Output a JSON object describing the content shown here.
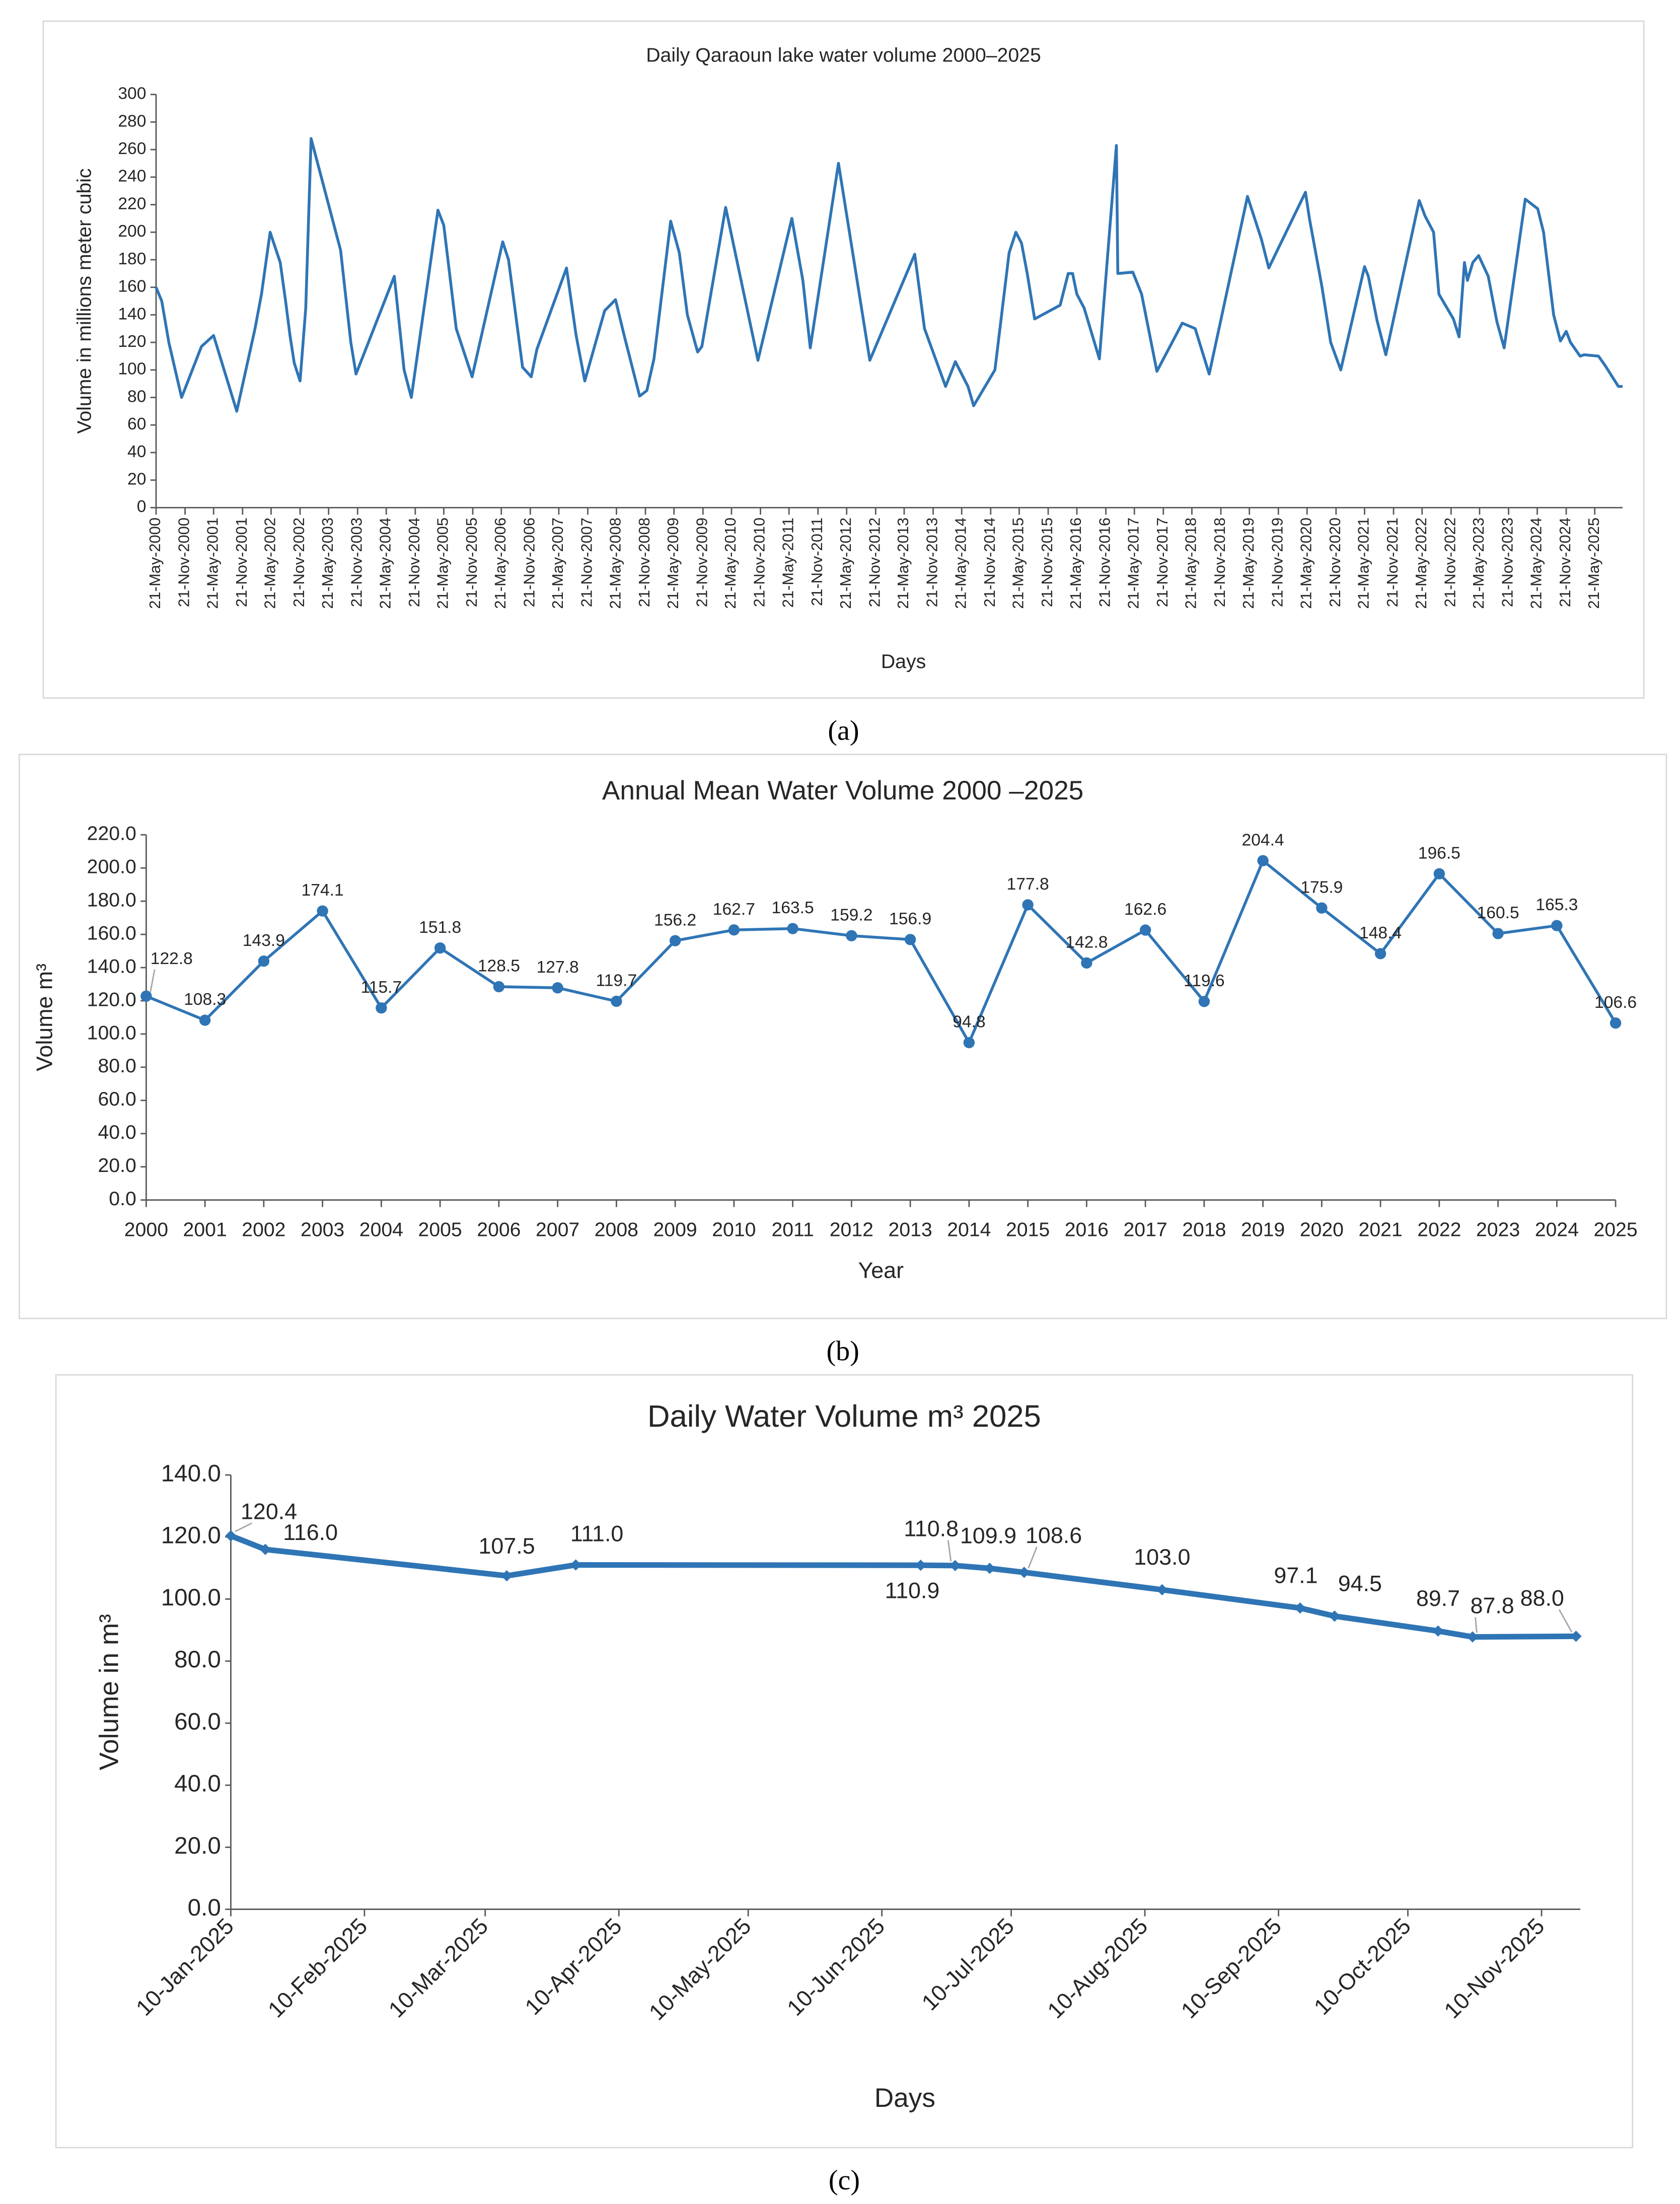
{
  "chart_data": [
    {
      "type": "line",
      "caption": "(a)",
      "title": "Daily Qaraoun lake water volume 2000–2025",
      "xlabel": "Days",
      "ylabel": "Volume in millions meter cubic",
      "color": "#2f75b5",
      "x": [
        "21-May-2000",
        "26-Jun-2000",
        "10-Aug-2000",
        "30-Oct-2000",
        "5-Mar-2001",
        "21-May-2001",
        "15-Oct-2001",
        "8-Feb-2002",
        "21-Mar-2002",
        "15-May-2002",
        "18-Jul-2002",
        "21-Aug-2002",
        "18-Sep-2002",
        "15-Oct-2002",
        "21-Nov-2002",
        "27-Dec-2002",
        "30-Jan-2003",
        "5-Aug-2003",
        "9-Oct-2003",
        "11-Nov-2003",
        "11-Jul-2004",
        "11-Sep-2004",
        "27-Oct-2004",
        "14-Apr-2005",
        "21-May-2005",
        "8-Aug-2005",
        "17-Nov-2005",
        "30-May-2006",
        "6-Jul-2006",
        "3-Oct-2006",
        "27-Nov-2006",
        "2-Jan-2007",
        "9-Jul-2007",
        "8-Sep-2007",
        "2-Nov-2007",
        "7-Mar-2008",
        "15-May-2008",
        "9-Jul-2008",
        "15-Oct-2008",
        "30-Nov-2008",
        "14-Jan-2009",
        "30-Apr-2009",
        "24-Jun-2009",
        "14-Aug-2009",
        "18-Oct-2009",
        "14-Nov-2009",
        "14-Apr-2010",
        "5-Nov-2010",
        "8-Jun-2011",
        "17-Aug-2011",
        "3-Oct-2011",
        "30-Mar-2012",
        "15-Oct-2012",
        "27-Jul-2013",
        "27-Sep-2013",
        "8-Feb-2014",
        "11-Apr-2014",
        "30-Jun-2014",
        "5-Aug-2014",
        "18-Dec-2014",
        "18-Mar-2015",
        "30-Apr-2015",
        "5-Jun-2015",
        "11-Jul-2015",
        "27-Aug-2015",
        "5-Feb-2016",
        "27-Mar-2016",
        "24-Apr-2016",
        "21-May-2016",
        "6-Jul-2016",
        "11-Oct-2016",
        "27-Jan-2017",
        "5-Feb-2017",
        "11-May-2017",
        "6-Jul-2017",
        "11-Oct-2017",
        "21-Mar-2018",
        "11-Jun-2018",
        "8-Sep-2018",
        "9-May-2019",
        "5-Aug-2019",
        "21-Sep-2019",
        "11-May-2020",
        "5-Jun-2020",
        "24-Aug-2020",
        "18-Oct-2020",
        "21-Dec-2020",
        "21-May-2021",
        "14-Jun-2021",
        "8-Aug-2021",
        "3-Oct-2021",
        "3-May-2022",
        "8-Jun-2022",
        "2-Aug-2022",
        "5-Sep-2022",
        "6-Dec-2022",
        "11-Jan-2023",
        "14-Feb-2023",
        "5-Mar-2023",
        "8-Apr-2023",
        "15-May-2023",
        "15-Jul-2023",
        "8-Sep-2023",
        "24-Oct-2023",
        "6-Mar-2024",
        "24-May-2024",
        "30-Jun-2024",
        "2-Sep-2024",
        "15-Oct-2024",
        "21-Nov-2024",
        "18-Dec-2024",
        "17-Feb-2025",
        "15-Mar-2025",
        "14-Jun-2025",
        "27-Jul-2025",
        "18-Oct-2025",
        "14-Nov-2025"
      ],
      "values": [
        160,
        150,
        120,
        80,
        117,
        125,
        70,
        130,
        155,
        200,
        178,
        150,
        125,
        105,
        92,
        145,
        268,
        187,
        120,
        97,
        168,
        100,
        80,
        216,
        205,
        130,
        95,
        193,
        180,
        102,
        95,
        115,
        174,
        125,
        92,
        143,
        151,
        125,
        81,
        85,
        108,
        208,
        185,
        140,
        113,
        117,
        218,
        107,
        210,
        165,
        116,
        250,
        107,
        184,
        130,
        88,
        106,
        88,
        74,
        100,
        185,
        200,
        192,
        170,
        137,
        147,
        170,
        170,
        155,
        145,
        108,
        263,
        170,
        171,
        155,
        99,
        134,
        130,
        97,
        226,
        195,
        174,
        229,
        210,
        160,
        120,
        100,
        175,
        168,
        136,
        111,
        223,
        212,
        200,
        155,
        137,
        124,
        178,
        165,
        178,
        183,
        168,
        135,
        116,
        224,
        217,
        200,
        140,
        121,
        128,
        120,
        110,
        111,
        110,
        103,
        88,
        88
      ],
      "xlim": [
        "21-May-2000",
        "14-Nov-2025"
      ],
      "xticks": [
        "21-May-2000",
        "21-Nov-2000",
        "21-May-2001",
        "21-Nov-2001",
        "21-May-2002",
        "21-Nov-2002",
        "21-May-2003",
        "21-Nov-2003",
        "21-May-2004",
        "21-Nov-2004",
        "21-May-2005",
        "21-Nov-2005",
        "21-May-2006",
        "21-Nov-2006",
        "21-May-2007",
        "21-Nov-2007",
        "21-May-2008",
        "21-Nov-2008",
        "21-May-2009",
        "21-Nov-2009",
        "21-May-2010",
        "21-Nov-2010",
        "21-May-2011",
        "21-Nov-2011",
        "21-May-2012",
        "21-Nov-2012",
        "21-May-2013",
        "21-Nov-2013",
        "21-May-2014",
        "21-Nov-2014",
        "21-May-2015",
        "21-Nov-2015",
        "21-May-2016",
        "21-Nov-2016",
        "21-May-2017",
        "21-Nov-2017",
        "21-May-2018",
        "21-Nov-2018",
        "21-May-2019",
        "21-Nov-2019",
        "21-May-2020",
        "21-Nov-2020",
        "21-May-2021",
        "21-Nov-2021",
        "21-May-2022",
        "21-Nov-2022",
        "21-May-2023",
        "21-Nov-2023",
        "21-May-2024",
        "21-Nov-2024",
        "21-May-2025"
      ],
      "ylim": [
        0,
        300
      ],
      "yticks": [
        0,
        20,
        40,
        60,
        80,
        100,
        120,
        140,
        160,
        180,
        200,
        220,
        240,
        260,
        280,
        300
      ],
      "grid": false
    },
    {
      "type": "line",
      "caption": "(b)",
      "title": "Annual Mean Water Volume 2000 –2025",
      "xlabel": "Year",
      "ylabel": "Volume m³",
      "color": "#2f75b5",
      "markers": "circle",
      "x": [
        2000,
        2001,
        2002,
        2003,
        2004,
        2005,
        2006,
        2007,
        2008,
        2009,
        2010,
        2011,
        2012,
        2013,
        2014,
        2015,
        2016,
        2017,
        2018,
        2019,
        2020,
        2021,
        2022,
        2023,
        2024,
        2025
      ],
      "values": [
        122.8,
        108.3,
        143.9,
        174.1,
        115.7,
        151.8,
        128.5,
        127.8,
        119.7,
        156.2,
        162.7,
        163.5,
        159.2,
        156.9,
        94.8,
        177.8,
        142.8,
        162.6,
        119.6,
        204.4,
        175.9,
        148.4,
        196.5,
        160.5,
        165.3,
        106.6
      ],
      "xlim": [
        2000,
        2025
      ],
      "xticks": [
        2000,
        2001,
        2002,
        2003,
        2004,
        2005,
        2006,
        2007,
        2008,
        2009,
        2010,
        2011,
        2012,
        2013,
        2014,
        2015,
        2016,
        2017,
        2018,
        2019,
        2020,
        2021,
        2022,
        2023,
        2024,
        2025
      ],
      "ylim": [
        0,
        220
      ],
      "yticks": [
        {
          "value": 0,
          "label": "0.0"
        },
        {
          "value": 20,
          "label": "20.0"
        },
        {
          "value": 40,
          "label": "40.0"
        },
        {
          "value": 60,
          "label": "60.0"
        },
        {
          "value": 80,
          "label": "80.0"
        },
        {
          "value": 100,
          "label": "100.0"
        },
        {
          "value": 120,
          "label": "120.0"
        },
        {
          "value": 140,
          "label": "140.0"
        },
        {
          "value": 160,
          "label": "160.0"
        },
        {
          "value": 180,
          "label": "180.0"
        },
        {
          "value": 200,
          "label": "200.0"
        },
        {
          "value": 220,
          "label": "220.0"
        }
      ],
      "grid": false
    },
    {
      "type": "line",
      "caption": "(c)",
      "title": "Daily Water Volume m³ 2025",
      "xlabel": "Days",
      "ylabel": "Volume in m³",
      "color": "#2f75b5",
      "markers": "diamond",
      "x": [
        "10-Jan-2025",
        "18-Jan-2025",
        "15-Mar-2025",
        "31-Mar-2025",
        "19-Jun-2025",
        "27-Jun-2025",
        "5-Jul-2025",
        "13-Jul-2025",
        "14-Aug-2025",
        "15-Sep-2025",
        "23-Sep-2025",
        "17-Oct-2025",
        "25-Oct-2025",
        "18-Nov-2025"
      ],
      "values": [
        120.4,
        116.0,
        107.5,
        111.0,
        110.9,
        110.8,
        109.9,
        108.6,
        103.0,
        97.1,
        94.5,
        89.7,
        87.8,
        88.0
      ],
      "value_labels": [
        "120.4",
        "116.0",
        "107.5",
        "111.0",
        "110.9",
        "110.8",
        "109.9",
        "108.6",
        "103.0",
        "97.1",
        "94.5",
        "89.7",
        "87.8",
        "88.0"
      ],
      "xlim": [
        "10-Jan-2025",
        "19-Nov-2025"
      ],
      "xticks": [
        "10-Jan-2025",
        "10-Feb-2025",
        "10-Mar-2025",
        "10-Apr-2025",
        "10-May-2025",
        "10-Jun-2025",
        "10-Jul-2025",
        "10-Aug-2025",
        "10-Sep-2025",
        "10-Oct-2025",
        "10-Nov-2025"
      ],
      "ylim": [
        0,
        140
      ],
      "yticks": [
        {
          "value": 0,
          "label": "0.0"
        },
        {
          "value": 20,
          "label": "20.0"
        },
        {
          "value": 40,
          "label": "40.0"
        },
        {
          "value": 60,
          "label": "60.0"
        },
        {
          "value": 80,
          "label": "80.0"
        },
        {
          "value": 100,
          "label": "100.0"
        },
        {
          "value": 120,
          "label": "120.0"
        },
        {
          "value": 140,
          "label": "140.0"
        }
      ],
      "grid": false
    }
  ]
}
